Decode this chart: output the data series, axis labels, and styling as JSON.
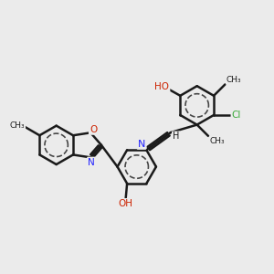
{
  "background_color": "#ebebeb",
  "bond_color": "#1a1a1a",
  "bond_width": 1.8,
  "N_color": "#2020ff",
  "O_color": "#cc2200",
  "Cl_color": "#3aaa3a",
  "figsize": [
    3.0,
    3.0
  ],
  "dpi": 100,
  "xlim": [
    0,
    10
  ],
  "ylim": [
    0,
    10
  ]
}
